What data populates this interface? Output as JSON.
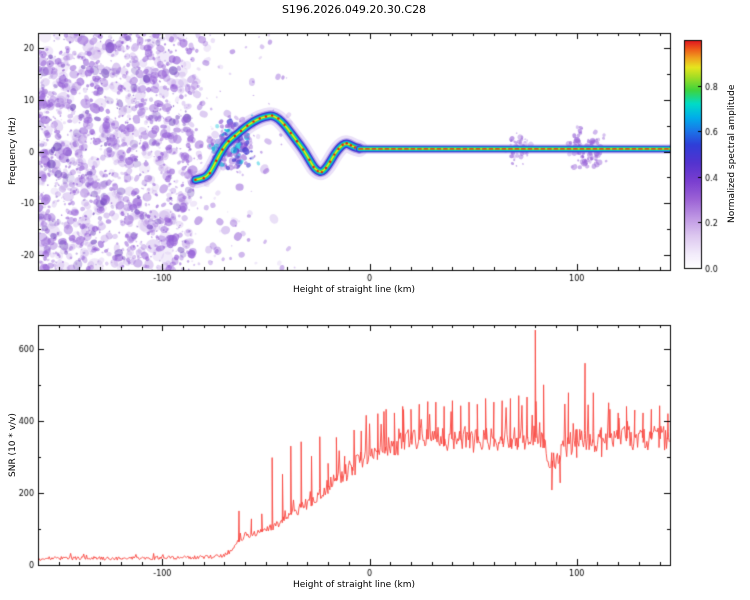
{
  "title": "S196.2026.049.20.30.C28",
  "chart_data": [
    {
      "type": "heatmap",
      "description": "Spectrogram of received signal: noise speckle at low heights, wandering carrier track that locks onto a straight line near 0 Hz",
      "xlabel": "Height of straight line (km)",
      "ylabel": "Frequency (Hz)",
      "xlim": [
        -160,
        145
      ],
      "ylim": [
        -23,
        23
      ],
      "xticks": [
        -100,
        0,
        100
      ],
      "yticks": [
        -20,
        -10,
        0,
        10,
        20
      ],
      "colorbar": {
        "label": "Normalized spectral amplitude",
        "range": [
          0,
          1
        ],
        "ticks": [
          0.0,
          0.2,
          0.4,
          0.6,
          0.8
        ],
        "stops": [
          [
            0.0,
            "#ffffff"
          ],
          [
            0.06,
            "#f3ecfb"
          ],
          [
            0.14,
            "#ddc8f0"
          ],
          [
            0.22,
            "#bf97e4"
          ],
          [
            0.3,
            "#9c63d6"
          ],
          [
            0.38,
            "#7a3fd0"
          ],
          [
            0.46,
            "#5433cf"
          ],
          [
            0.54,
            "#2f3ed8"
          ],
          [
            0.6,
            "#1b74e8"
          ],
          [
            0.66,
            "#00aeea"
          ],
          [
            0.72,
            "#00dcc8"
          ],
          [
            0.78,
            "#3fd43c"
          ],
          [
            0.84,
            "#a8de24"
          ],
          [
            0.88,
            "#e6e61e"
          ],
          [
            0.92,
            "#f0a41e"
          ],
          [
            0.96,
            "#ee5a1a"
          ],
          [
            1.0,
            "#e01220"
          ]
        ]
      },
      "track_colors": {
        "halo": "rgba(150,104,222,0.20)",
        "halo2": "rgba(122,82,212,0.42)",
        "blue": "#3c34cf",
        "lightblue": "#0f8ee6",
        "cyan": "#00dcc8",
        "green": "#44d22a",
        "yellow": "#e6e61e",
        "red": "#e62214"
      },
      "signal_track": [
        [
          -84,
          -5.5
        ],
        [
          -80,
          -5.2
        ],
        [
          -77,
          -4.2
        ],
        [
          -74,
          -1.8
        ],
        [
          -71,
          0.4
        ],
        [
          -68,
          2
        ],
        [
          -65,
          3
        ],
        [
          -62,
          4
        ],
        [
          -59,
          5
        ],
        [
          -56,
          5.8
        ],
        [
          -53,
          6.4
        ],
        [
          -50,
          6.8
        ],
        [
          -47,
          7
        ],
        [
          -44,
          6.4
        ],
        [
          -41,
          5.2
        ],
        [
          -38,
          3.6
        ],
        [
          -35,
          2
        ],
        [
          -32,
          0.4
        ],
        [
          -29,
          -1.6
        ],
        [
          -27,
          -3
        ],
        [
          -25,
          -3.8
        ],
        [
          -23,
          -4
        ],
        [
          -21,
          -3.2
        ],
        [
          -19,
          -2
        ],
        [
          -17,
          -0.6
        ],
        [
          -15,
          0.5
        ],
        [
          -13,
          1.3
        ],
        [
          -11,
          1.6
        ],
        [
          -9,
          1.2
        ],
        [
          -7,
          0.8
        ],
        [
          -5,
          0.6
        ]
      ],
      "flat_track": {
        "x0": -5,
        "x1": 145,
        "f": 0.5
      },
      "noise": {
        "seed": 1337,
        "color": "#9560d6",
        "dark_color": "#6b40bb",
        "blue": "#4338d0",
        "cyan": "#00c0d8",
        "dense_range_km": [
          -160,
          -85
        ],
        "dense_count": 1500,
        "soft_count": 130,
        "sparse_range_km": [
          -85,
          -30
        ],
        "sparse_count": 300,
        "acquisition_cluster": {
          "x": -66,
          "f": 1.5,
          "sx": 8,
          "sf": 3.5,
          "n": 150
        },
        "flat_fuzz": [
          {
            "x": 72,
            "sx": 4,
            "sf": 2.2,
            "n": 45
          },
          {
            "x": 103,
            "sx": 5,
            "sf": 2.8,
            "n": 70
          },
          {
            "x": 110,
            "sx": 3,
            "sf": 2.0,
            "n": 30
          }
        ]
      }
    },
    {
      "type": "line",
      "description": "Signal-to-noise ratio versus height of straight line",
      "xlabel": "Height of straight line (km)",
      "ylabel": "SNR (10 * v/v)",
      "color": "#f8463f",
      "seed": 99,
      "xlim": [
        -160,
        145
      ],
      "ylim": [
        0,
        666
      ],
      "xticks": [
        -100,
        0,
        100
      ],
      "yticks": [
        0,
        200,
        400,
        600
      ],
      "envelope": [
        [
          -160,
          18
        ],
        [
          -140,
          19
        ],
        [
          -120,
          18
        ],
        [
          -100,
          20
        ],
        [
          -90,
          20
        ],
        [
          -80,
          22
        ],
        [
          -72,
          24
        ],
        [
          -68,
          32
        ],
        [
          -64,
          62
        ],
        [
          -60,
          82
        ],
        [
          -55,
          86
        ],
        [
          -50,
          96
        ],
        [
          -45,
          112
        ],
        [
          -40,
          132
        ],
        [
          -35,
          152
        ],
        [
          -30,
          172
        ],
        [
          -25,
          196
        ],
        [
          -20,
          216
        ],
        [
          -15,
          240
        ],
        [
          -10,
          262
        ],
        [
          -5,
          286
        ],
        [
          0,
          306
        ],
        [
          5,
          320
        ],
        [
          10,
          332
        ],
        [
          15,
          340
        ],
        [
          20,
          346
        ],
        [
          30,
          350
        ],
        [
          40,
          350
        ],
        [
          50,
          346
        ],
        [
          60,
          350
        ],
        [
          70,
          352
        ],
        [
          78,
          356
        ],
        [
          82,
          350
        ],
        [
          86,
          300
        ],
        [
          90,
          278
        ],
        [
          94,
          330
        ],
        [
          98,
          342
        ],
        [
          102,
          350
        ],
        [
          106,
          346
        ],
        [
          110,
          350
        ],
        [
          115,
          354
        ],
        [
          120,
          350
        ],
        [
          130,
          354
        ],
        [
          140,
          350
        ],
        [
          145,
          354
        ]
      ],
      "spikes": [
        [
          -63,
          150
        ],
        [
          -57,
          128
        ],
        [
          -52,
          142
        ],
        [
          -47,
          298
        ],
        [
          -42,
          252
        ],
        [
          -38,
          330
        ],
        [
          -33,
          342
        ],
        [
          -28,
          302
        ],
        [
          -24,
          356
        ],
        [
          -20,
          282
        ],
        [
          -16,
          354
        ],
        [
          -12,
          302
        ],
        [
          -8,
          262
        ],
        [
          -4,
          372
        ],
        [
          0,
          392
        ],
        [
          4,
          420
        ],
        [
          8,
          432
        ],
        [
          12,
          422
        ],
        [
          16,
          440
        ],
        [
          20,
          432
        ],
        [
          24,
          446
        ],
        [
          28,
          430
        ],
        [
          32,
          452
        ],
        [
          36,
          440
        ],
        [
          40,
          456
        ],
        [
          44,
          442
        ],
        [
          48,
          452
        ],
        [
          52,
          446
        ],
        [
          56,
          462
        ],
        [
          60,
          452
        ],
        [
          64,
          456
        ],
        [
          68,
          462
        ],
        [
          72,
          470
        ],
        [
          76,
          466
        ],
        [
          80,
          652
        ],
        [
          84,
          500
        ],
        [
          88,
          208
        ],
        [
          92,
          228
        ],
        [
          96,
          478
        ],
        [
          100,
          298
        ],
        [
          104,
          560
        ],
        [
          108,
          478
        ],
        [
          112,
          300
        ],
        [
          116,
          432
        ],
        [
          120,
          422
        ],
        [
          124,
          440
        ],
        [
          128,
          430
        ],
        [
          132,
          422
        ],
        [
          136,
          432
        ],
        [
          140,
          442
        ],
        [
          144,
          420
        ]
      ]
    }
  ]
}
